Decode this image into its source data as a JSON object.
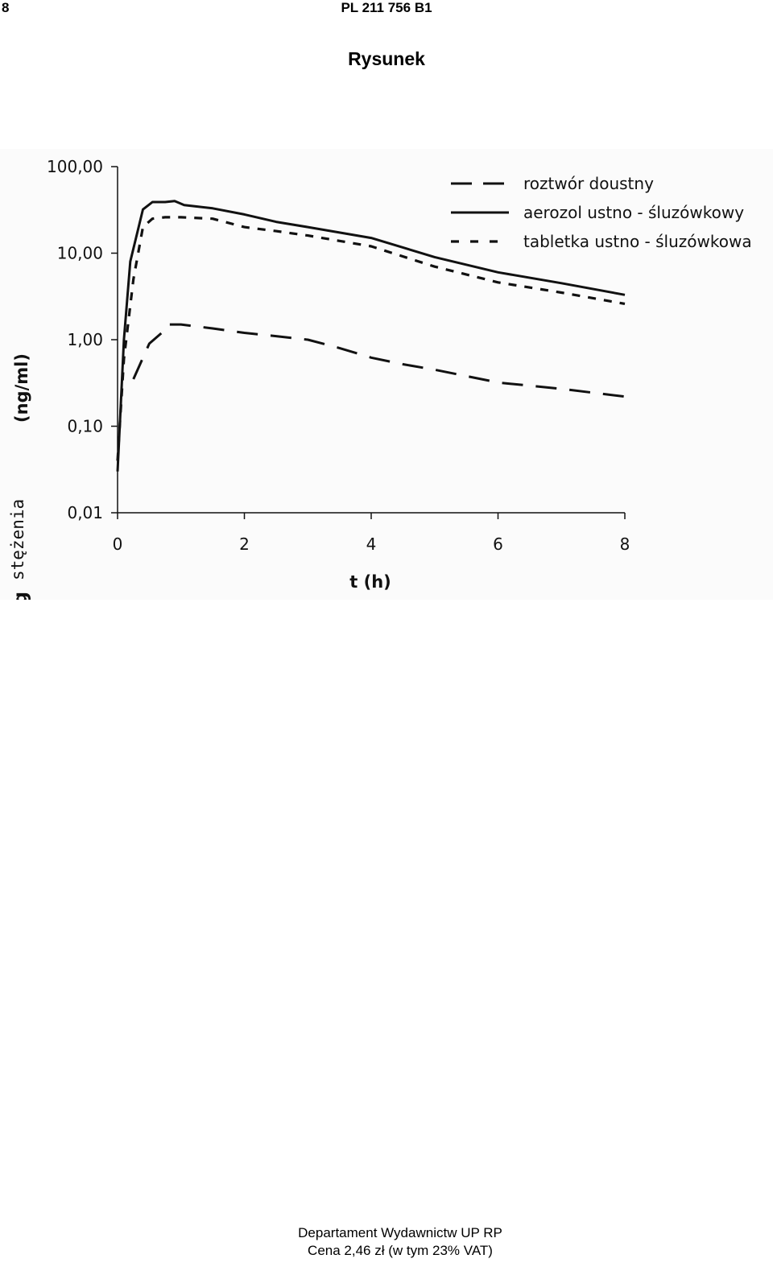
{
  "header": {
    "page_number": "8",
    "patent_id": "PL 211 756 B1"
  },
  "figure": {
    "title": "Rysunek"
  },
  "chart_data": {
    "type": "line",
    "title": "",
    "xlabel": "t (h)",
    "ylabel_main": "log",
    "ylabel_word": "stężenia",
    "ylabel_unit": "(ng/ml)",
    "yscale": "log",
    "xlim": [
      0,
      8
    ],
    "ylim": [
      0.01,
      100
    ],
    "x_ticks": [
      "0",
      "2",
      "4",
      "6",
      "8"
    ],
    "y_ticks": [
      "100,00",
      "10,00",
      "1,00",
      "0,10",
      "0,01"
    ],
    "grid": false,
    "legend_position": "top-right",
    "series": [
      {
        "name": "roztwór doustny",
        "style": "long-dash",
        "x": [
          0.25,
          0.5,
          0.75,
          0.8,
          1.0,
          1.5,
          2.0,
          2.5,
          3.0,
          3.5,
          4.0,
          4.5,
          5.0,
          5.5,
          6.0,
          7.0,
          8.0
        ],
        "y": [
          0.35,
          0.9,
          1.3,
          1.5,
          1.5,
          1.35,
          1.2,
          1.1,
          1.0,
          0.8,
          0.62,
          0.52,
          0.45,
          0.38,
          0.32,
          0.27,
          0.22
        ]
      },
      {
        "name": "aerozol ustno - śluzówkowy",
        "style": "solid",
        "x": [
          0,
          0.1,
          0.2,
          0.4,
          0.55,
          0.75,
          0.9,
          1.05,
          1.5,
          2.0,
          2.5,
          3.0,
          4.0,
          5.0,
          6.0,
          7.0,
          8.0
        ],
        "y": [
          0.03,
          1.0,
          8.0,
          32.0,
          39.0,
          39.0,
          40.0,
          36.0,
          33.0,
          28.0,
          23.0,
          20.0,
          15.0,
          9.0,
          6.0,
          4.5,
          3.3
        ]
      },
      {
        "name": "tabletka ustno - śluzówkowa",
        "style": "short-dash",
        "x": [
          0,
          0.1,
          0.25,
          0.4,
          0.55,
          0.75,
          1.0,
          1.5,
          2.0,
          2.5,
          3.0,
          4.0,
          5.0,
          6.0,
          7.0,
          8.0
        ],
        "y": [
          0.04,
          0.6,
          5.0,
          20.0,
          25.0,
          26.0,
          26.0,
          25.0,
          20.0,
          18.0,
          16.0,
          12.0,
          7.0,
          4.6,
          3.5,
          2.6
        ]
      }
    ]
  },
  "footer": {
    "line1": "Departament Wydawnictw UP RP",
    "line2": "Cena 2,46 zł (w tym 23% VAT)"
  }
}
